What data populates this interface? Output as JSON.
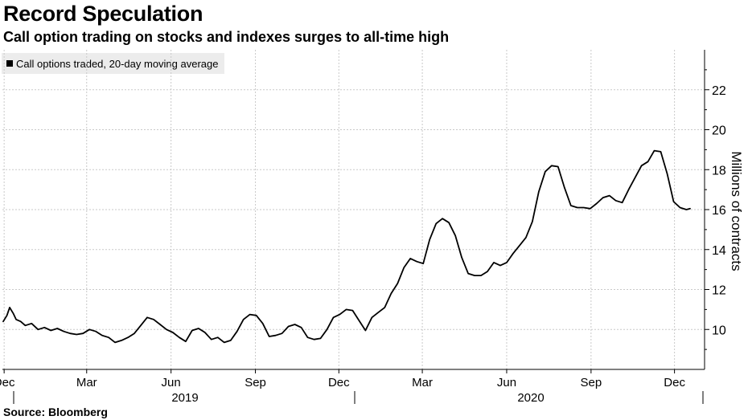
{
  "title": "Record Speculation",
  "subtitle": "Call option trading on stocks and indexes surges to all-time high",
  "source": "Source: Bloomberg",
  "chart_data": {
    "type": "line",
    "title": "Record Speculation",
    "subtitle": "Call option trading on stocks and indexes surges to all-time high",
    "ylabel": "Millions of contracts",
    "xlabel": "",
    "ylim": [
      8,
      24
    ],
    "y_ticks": [
      10,
      12,
      14,
      16,
      18,
      20,
      22
    ],
    "x_ticks": [
      "Dec",
      "Mar",
      "Jun",
      "Sep",
      "Dec",
      "Mar",
      "Jun",
      "Sep",
      "Dec"
    ],
    "x_years": [
      "2019",
      "2020"
    ],
    "grid": true,
    "legend_position": "top-left",
    "series": [
      {
        "name": "Call options traded, 20-day moving average",
        "color": "#000000",
        "x": [
          "2018-11-30",
          "2018-12-04",
          "2018-12-07",
          "2018-12-11",
          "2018-12-14",
          "2018-12-19",
          "2018-12-24",
          "2018-12-31",
          "2019-01-07",
          "2019-01-14",
          "2019-01-21",
          "2019-01-28",
          "2019-02-04",
          "2019-02-11",
          "2019-02-18",
          "2019-02-25",
          "2019-03-04",
          "2019-03-11",
          "2019-03-18",
          "2019-03-25",
          "2019-04-01",
          "2019-04-08",
          "2019-04-15",
          "2019-04-22",
          "2019-04-29",
          "2019-05-06",
          "2019-05-13",
          "2019-05-20",
          "2019-05-27",
          "2019-06-03",
          "2019-06-10",
          "2019-06-17",
          "2019-06-24",
          "2019-07-01",
          "2019-07-08",
          "2019-07-15",
          "2019-07-22",
          "2019-07-29",
          "2019-08-05",
          "2019-08-12",
          "2019-08-19",
          "2019-08-26",
          "2019-09-02",
          "2019-09-09",
          "2019-09-16",
          "2019-09-23",
          "2019-09-30",
          "2019-10-07",
          "2019-10-14",
          "2019-10-21",
          "2019-10-28",
          "2019-11-04",
          "2019-11-11",
          "2019-11-18",
          "2019-11-25",
          "2019-12-02",
          "2019-12-09",
          "2019-12-16",
          "2019-12-23",
          "2019-12-30",
          "2020-01-06",
          "2020-01-13",
          "2020-01-20",
          "2020-01-27",
          "2020-02-03",
          "2020-02-10",
          "2020-02-17",
          "2020-02-24",
          "2020-03-02",
          "2020-03-09",
          "2020-03-16",
          "2020-03-23",
          "2020-03-30",
          "2020-04-06",
          "2020-04-13",
          "2020-04-20",
          "2020-04-27",
          "2020-05-04",
          "2020-05-11",
          "2020-05-18",
          "2020-05-25",
          "2020-06-01",
          "2020-06-08",
          "2020-06-15",
          "2020-06-22",
          "2020-06-29",
          "2020-07-06",
          "2020-07-13",
          "2020-07-20",
          "2020-07-27",
          "2020-08-03",
          "2020-08-10",
          "2020-08-17",
          "2020-08-24",
          "2020-08-31",
          "2020-09-07",
          "2020-09-14",
          "2020-09-21",
          "2020-09-28",
          "2020-10-05",
          "2020-10-12",
          "2020-10-19",
          "2020-10-26",
          "2020-11-02",
          "2020-11-09",
          "2020-11-16",
          "2020-11-23",
          "2020-11-30",
          "2020-12-07",
          "2020-12-14",
          "2020-12-18"
        ],
        "values": [
          10.4,
          10.7,
          11.1,
          10.8,
          10.5,
          10.4,
          10.2,
          10.3,
          10.0,
          10.1,
          9.95,
          10.05,
          9.9,
          9.8,
          9.75,
          9.8,
          10.0,
          9.9,
          9.7,
          9.6,
          9.35,
          9.45,
          9.6,
          9.8,
          10.2,
          10.6,
          10.5,
          10.25,
          10.0,
          9.85,
          9.6,
          9.4,
          9.95,
          10.05,
          9.85,
          9.5,
          9.6,
          9.35,
          9.45,
          9.9,
          10.5,
          10.75,
          10.7,
          10.3,
          9.65,
          9.7,
          9.8,
          10.15,
          10.25,
          10.1,
          9.6,
          9.5,
          9.55,
          10.0,
          10.6,
          10.75,
          11.0,
          10.95,
          10.45,
          9.95,
          10.6,
          10.85,
          11.1,
          11.8,
          12.3,
          13.1,
          13.55,
          13.4,
          13.3,
          14.5,
          15.3,
          15.55,
          15.35,
          14.7,
          13.6,
          12.8,
          12.7,
          12.7,
          12.9,
          13.35,
          13.2,
          13.35,
          13.8,
          14.2,
          14.6,
          15.4,
          16.9,
          17.9,
          18.2,
          18.15,
          17.1,
          16.2,
          16.1,
          16.1,
          16.05,
          16.3,
          16.6,
          16.7,
          16.45,
          16.35,
          17.0,
          17.6,
          18.2,
          18.4,
          18.95,
          18.9,
          17.8,
          16.4,
          16.1,
          16.0,
          16.05
        ]
      }
    ]
  }
}
